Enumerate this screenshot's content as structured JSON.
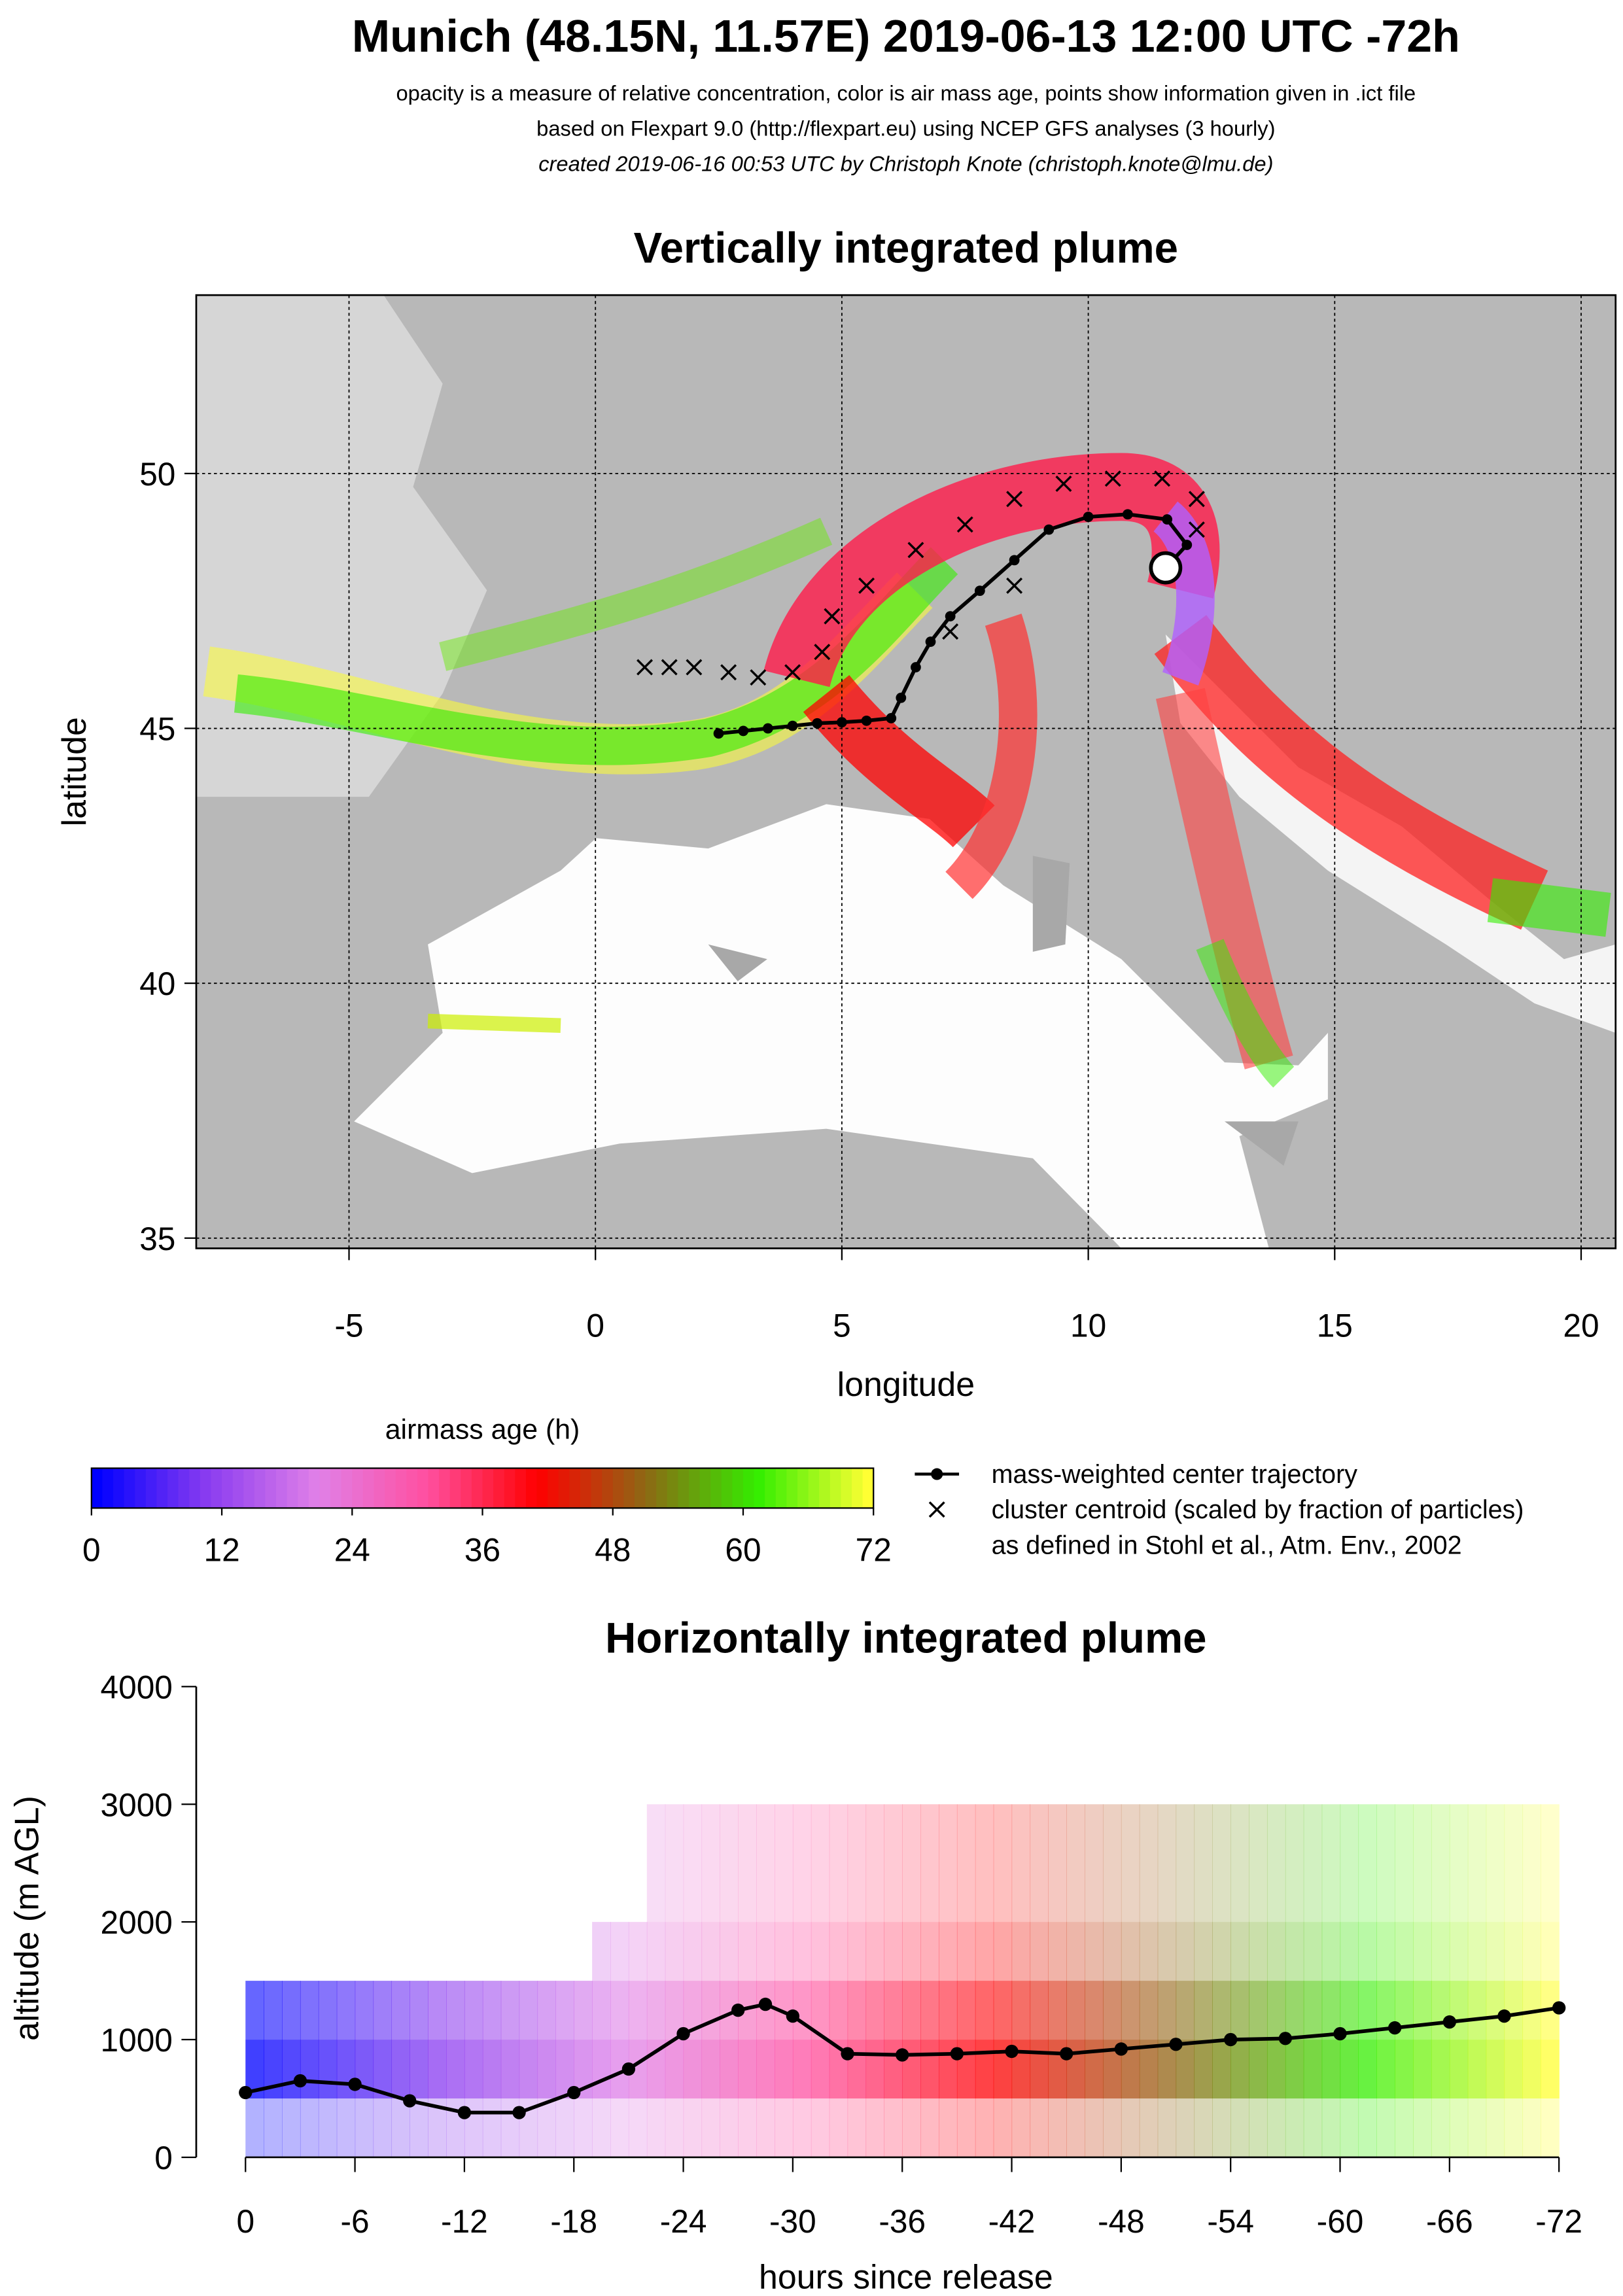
{
  "header": {
    "title": "Munich (48.15N, 11.57E) 2019-06-13 12:00 UTC -72h",
    "lines": [
      "opacity is a measure of relative concentration, color is air mass age, points show information given in .ict file",
      "based on Flexpart 9.0 (http://flexpart.eu) using NCEP GFS analyses (3 hourly)",
      "created 2019-06-16 00:53 UTC by Christoph Knote (christoph.knote@lmu.de)"
    ]
  },
  "chart_data": [
    {
      "type": "scatter",
      "title": "Vertically integrated plume",
      "xlabel": "longitude",
      "ylabel": "latitude",
      "xlim": [
        -8.1,
        20.7
      ],
      "ylim": [
        34.8,
        53.5
      ],
      "xticks": [
        -5,
        0,
        5,
        10,
        15,
        20
      ],
      "yticks": [
        35,
        40,
        45,
        50
      ],
      "grid": true,
      "release_point": [
        11.57,
        48.15
      ],
      "series": [
        {
          "name": "mass-weighted center trajectory",
          "color": "#000000",
          "marker": "circle-line",
          "x": [
            11.57,
            12.0,
            11.6,
            10.8,
            10.0,
            9.2,
            8.5,
            7.8,
            7.2,
            6.8,
            6.5,
            6.2,
            6.0,
            5.5,
            5.0,
            4.5,
            4.0,
            3.5,
            3.0,
            2.5
          ],
          "values": [
            48.15,
            48.6,
            49.1,
            49.2,
            49.15,
            48.9,
            48.3,
            47.7,
            47.2,
            46.7,
            46.2,
            45.6,
            45.2,
            45.15,
            45.12,
            45.1,
            45.05,
            45.0,
            44.95,
            44.9
          ]
        },
        {
          "name": "cluster centroid (scaled by fraction of particles)",
          "color": "#000000",
          "marker": "cross",
          "x": [
            1.0,
            1.5,
            2.0,
            2.7,
            3.3,
            4.0,
            4.6,
            4.8,
            5.5,
            6.5,
            7.5,
            8.5,
            9.5,
            10.5,
            11.5,
            12.2,
            12.2,
            8.5,
            7.2
          ],
          "values": [
            46.2,
            46.2,
            46.2,
            46.1,
            46.0,
            46.1,
            46.5,
            47.2,
            47.8,
            48.5,
            49.0,
            49.5,
            49.8,
            49.9,
            49.9,
            49.5,
            48.9,
            47.8,
            46.9
          ]
        }
      ],
      "legend_note": "as defined in Stohl et al., Atm. Env., 2002"
    },
    {
      "type": "colorbar",
      "title": "airmass age (h)",
      "xlim": [
        0,
        72
      ],
      "xticks": [
        0,
        12,
        24,
        36,
        48,
        60,
        72
      ],
      "colors": [
        "#0000ff",
        "#8a3cf0",
        "#e080e8",
        "#ff4fa0",
        "#ff0000",
        "#8b6a14",
        "#33ee00",
        "#ffff33"
      ]
    },
    {
      "type": "line",
      "title": "Horizontally integrated plume",
      "xlabel": "hours since release",
      "ylabel": "altitude (m AGL)",
      "xlim": [
        -2.7,
        74.7
      ],
      "ylim": [
        0,
        4000
      ],
      "xticks": [
        0,
        {
          "value": 6,
          "label": "-6"
        },
        {
          "value": 12,
          "label": "-12"
        },
        {
          "value": 18,
          "label": "-18"
        },
        {
          "value": 24,
          "label": "-24"
        },
        {
          "value": 30,
          "label": "-30"
        },
        {
          "value": 36,
          "label": "-36"
        },
        {
          "value": 42,
          "label": "-42"
        },
        {
          "value": 48,
          "label": "-48"
        },
        {
          "value": 54,
          "label": "-54"
        },
        {
          "value": 60,
          "label": "-60"
        },
        {
          "value": 66,
          "label": "-66"
        },
        {
          "value": 72,
          "label": "-72"
        }
      ],
      "yticks": [
        0,
        1000,
        2000,
        3000,
        4000
      ],
      "x": [
        0,
        3,
        6,
        9,
        12,
        15,
        18,
        21,
        24,
        27,
        28.5,
        30,
        33,
        36,
        39,
        42,
        45,
        48,
        51,
        54,
        57,
        60,
        63,
        66,
        69,
        72
      ],
      "series": [
        {
          "color": "#000000",
          "values": [
            550,
            650,
            620,
            480,
            380,
            380,
            550,
            750,
            1050,
            1250,
            1300,
            1200,
            880,
            870,
            880,
            900,
            880,
            920,
            960,
            1000,
            1010,
            1050,
            1100,
            1150,
            1200,
            1270
          ]
        }
      ]
    }
  ]
}
